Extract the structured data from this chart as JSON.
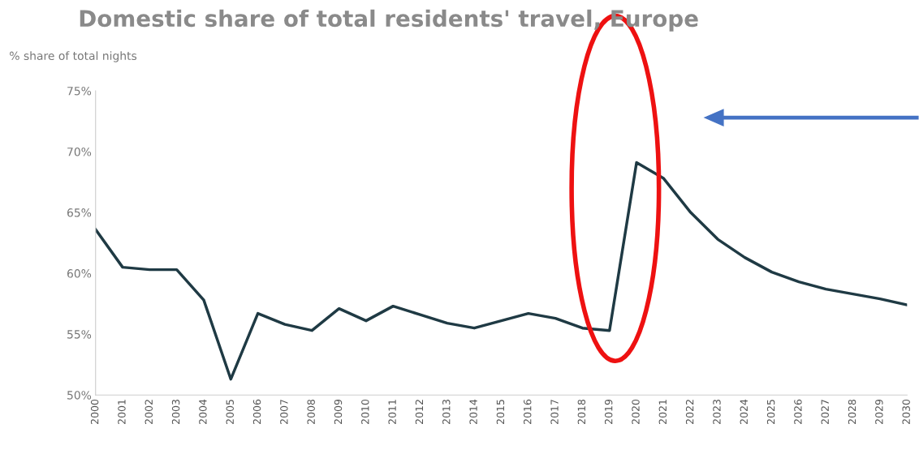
{
  "chart_data": {
    "type": "line",
    "title": "Domestic share of total residents' travel, Europe",
    "ylabel": "% share of total nights",
    "categories": [
      "2000",
      "2001",
      "2002",
      "2003",
      "2004",
      "2005",
      "2006",
      "2007",
      "2008",
      "2009",
      "2010",
      "2011",
      "2012",
      "2013",
      "2014",
      "2015",
      "2016",
      "2017",
      "2018",
      "2019",
      "2020",
      "2021",
      "2022",
      "2023",
      "2024",
      "2025",
      "2026",
      "2027",
      "2028",
      "2029",
      "2030"
    ],
    "series": [
      {
        "color": "#1f3a44",
        "values": [
          63.6,
          60.5,
          60.3,
          60.3,
          57.8,
          51.3,
          56.7,
          55.8,
          55.3,
          57.1,
          56.1,
          57.3,
          56.6,
          55.9,
          55.5,
          56.1,
          56.7,
          56.3,
          55.5,
          55.3,
          69.1,
          67.8,
          65.0,
          62.8,
          61.3,
          60.1,
          59.3,
          58.7,
          58.3,
          57.9,
          57.4
        ]
      }
    ],
    "ylim": [
      50,
      75
    ],
    "yticks": [
      {
        "value": 50,
        "label": "50%"
      },
      {
        "value": 55,
        "label": "55%"
      },
      {
        "value": 60,
        "label": "60%"
      },
      {
        "value": 65,
        "label": "65%"
      },
      {
        "value": 70,
        "label": "70%"
      },
      {
        "value": 75,
        "label": "75%"
      }
    ],
    "grid": false,
    "legend": false,
    "marker": "none",
    "line_style": "solid"
  }
}
